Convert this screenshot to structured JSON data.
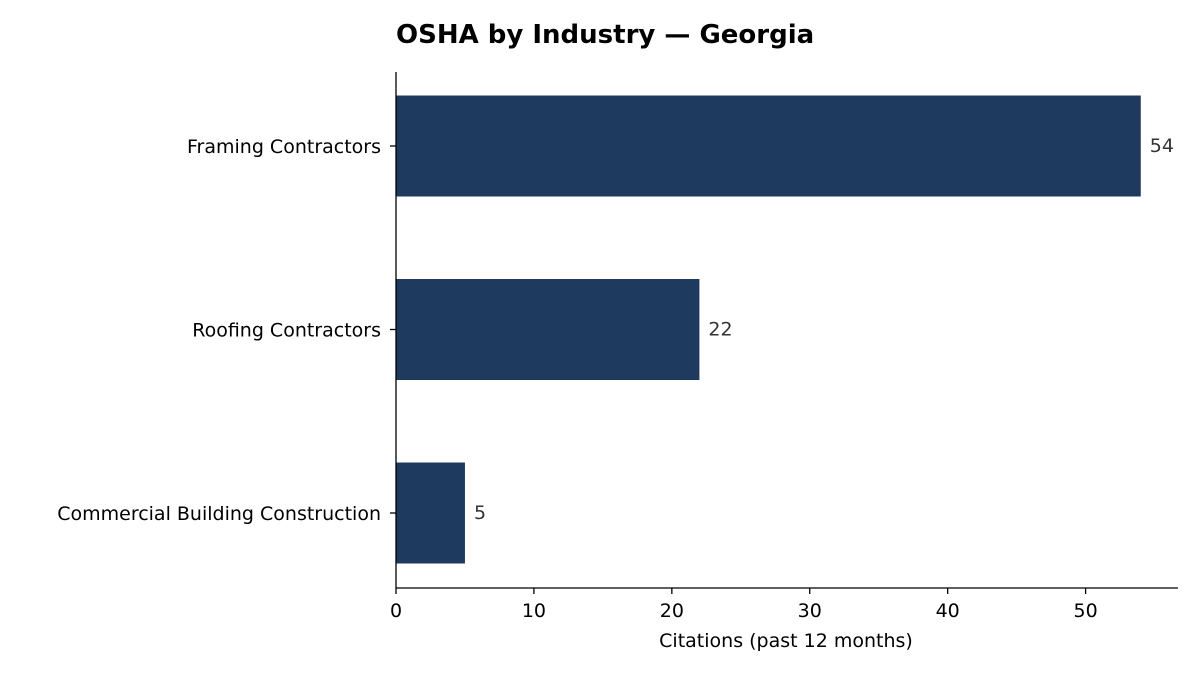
{
  "chart_data": {
    "type": "bar",
    "orientation": "horizontal",
    "title": "OSHA by Industry — Georgia",
    "xlabel": "Citations (past 12 months)",
    "ylabel": "",
    "categories": [
      "Framing Contractors",
      "Roofing Contractors",
      "Commercial Building Construction"
    ],
    "values": [
      54,
      22,
      5
    ],
    "data_labels": [
      "54",
      "22",
      "5"
    ],
    "xlim": [
      0,
      56.7
    ],
    "xticks": [
      0,
      10,
      20,
      30,
      40,
      50
    ],
    "xtick_labels": [
      "0",
      "10",
      "20",
      "30",
      "40",
      "50"
    ],
    "grid": false,
    "legend": "none",
    "bar_color": "#1f3a5f"
  }
}
